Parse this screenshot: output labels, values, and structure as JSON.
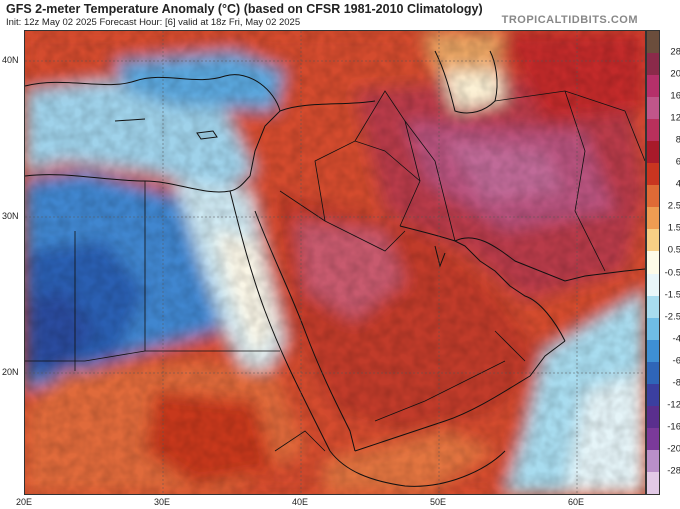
{
  "header": {
    "title": "GFS 2-meter Temperature Anomaly (°C) (based on CFSR 1981-2010 Climatology)",
    "subtitle": "Init: 12z May 02 2025   Forecast Hour: [6]   valid at 18z Fri, May 02 2025",
    "brand": "TROPICALTIDBITS.COM"
  },
  "map": {
    "lat_labels": [
      "40N",
      "30N",
      "20N"
    ],
    "lon_labels": [
      "20E",
      "30E",
      "40E",
      "50E",
      "60E"
    ]
  },
  "colorbar": {
    "labels": [
      "28",
      "20",
      "16",
      "12",
      "8",
      "6",
      "4",
      "2.5",
      "1.5",
      "0.5",
      "-0.5",
      "-1.5",
      "-2.5",
      "-4",
      "-6",
      "-8",
      "-12",
      "-16",
      "-20",
      "-28"
    ],
    "colors": [
      "#6b4d3c",
      "#8b2a4a",
      "#b5306a",
      "#c0568a",
      "#b8305c",
      "#a81a2a",
      "#c93520",
      "#df6a36",
      "#ee9c52",
      "#f7cf85",
      "#fdfbe8",
      "#e9f6f9",
      "#a8dcef",
      "#6fbde6",
      "#3e8fd4",
      "#2f65b8",
      "#3b3fa0",
      "#5a2f8e",
      "#7b3a9a",
      "#b98fc8",
      "#e2c9e6"
    ]
  }
}
